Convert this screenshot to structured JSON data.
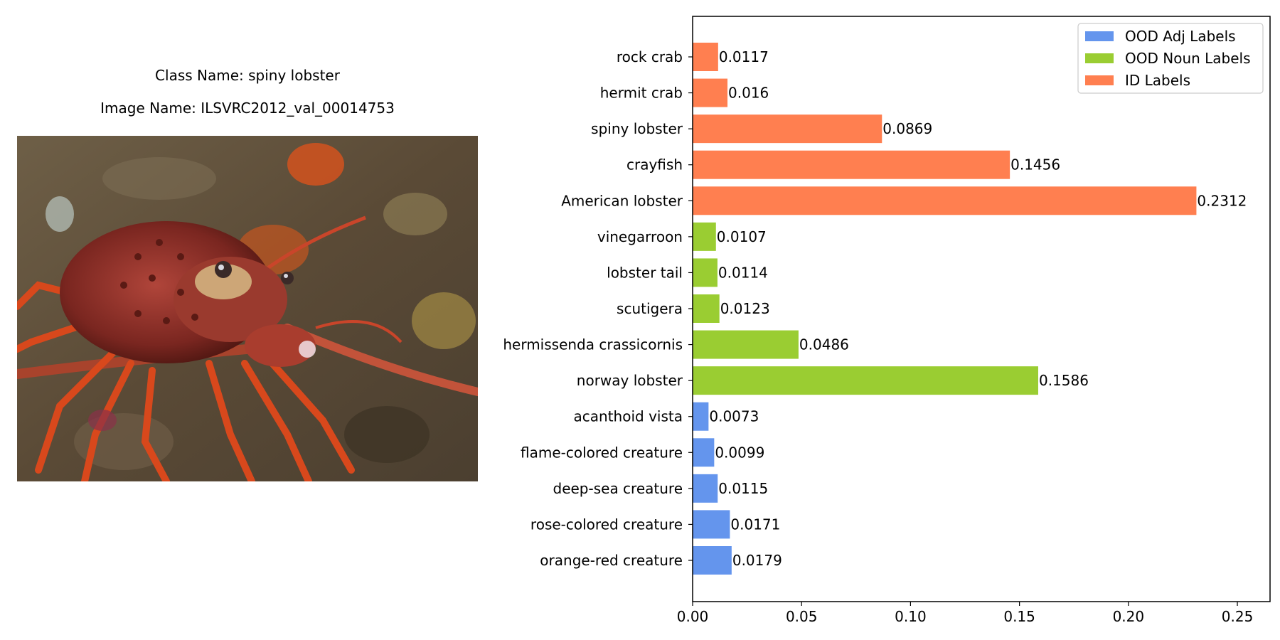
{
  "image_panel": {
    "class_name": "Class Name: spiny lobster",
    "image_name": "Image Name: ILSVRC2012_val_00014753"
  },
  "chart_data": {
    "type": "bar",
    "orientation": "horizontal",
    "categories": [
      "orange-red creature",
      "rose-colored creature",
      "deep-sea creature",
      "flame-colored creature",
      "acanthoid vista",
      "norway lobster",
      "hermissenda crassicornis",
      "scutigera",
      "lobster tail",
      "vinegarroon",
      "American lobster",
      "crayfish",
      "spiny lobster",
      "hermit crab",
      "rock crab"
    ],
    "values": [
      0.0179,
      0.0171,
      0.0115,
      0.0099,
      0.0073,
      0.1586,
      0.0486,
      0.0123,
      0.0114,
      0.0107,
      0.2312,
      0.1456,
      0.0869,
      0.016,
      0.0117
    ],
    "value_labels": [
      "0.0179",
      "0.0171",
      "0.0115",
      "0.0099",
      "0.0073",
      "0.1586",
      "0.0486",
      "0.0123",
      "0.0114",
      "0.0107",
      "0.2312",
      "0.1456",
      "0.0869",
      "0.016",
      "0.0117"
    ],
    "group_of_category": [
      0,
      0,
      0,
      0,
      0,
      1,
      1,
      1,
      1,
      1,
      2,
      2,
      2,
      2,
      2
    ],
    "series": [
      {
        "name": "OOD Adj Labels",
        "color": "#6495ed"
      },
      {
        "name": "OOD Noun Labels",
        "color": "#9acd32"
      },
      {
        "name": "ID Labels",
        "color": "#ff7f50"
      }
    ],
    "xlim": [
      0,
      0.265
    ],
    "xticks": [
      0.0,
      0.05,
      0.1,
      0.15,
      0.2,
      0.25
    ],
    "xtick_labels": [
      "0.00",
      "0.05",
      "0.10",
      "0.15",
      "0.20",
      "0.25"
    ],
    "legend_position": "top-right",
    "grid": false,
    "title": "",
    "xlabel": "",
    "ylabel": ""
  }
}
